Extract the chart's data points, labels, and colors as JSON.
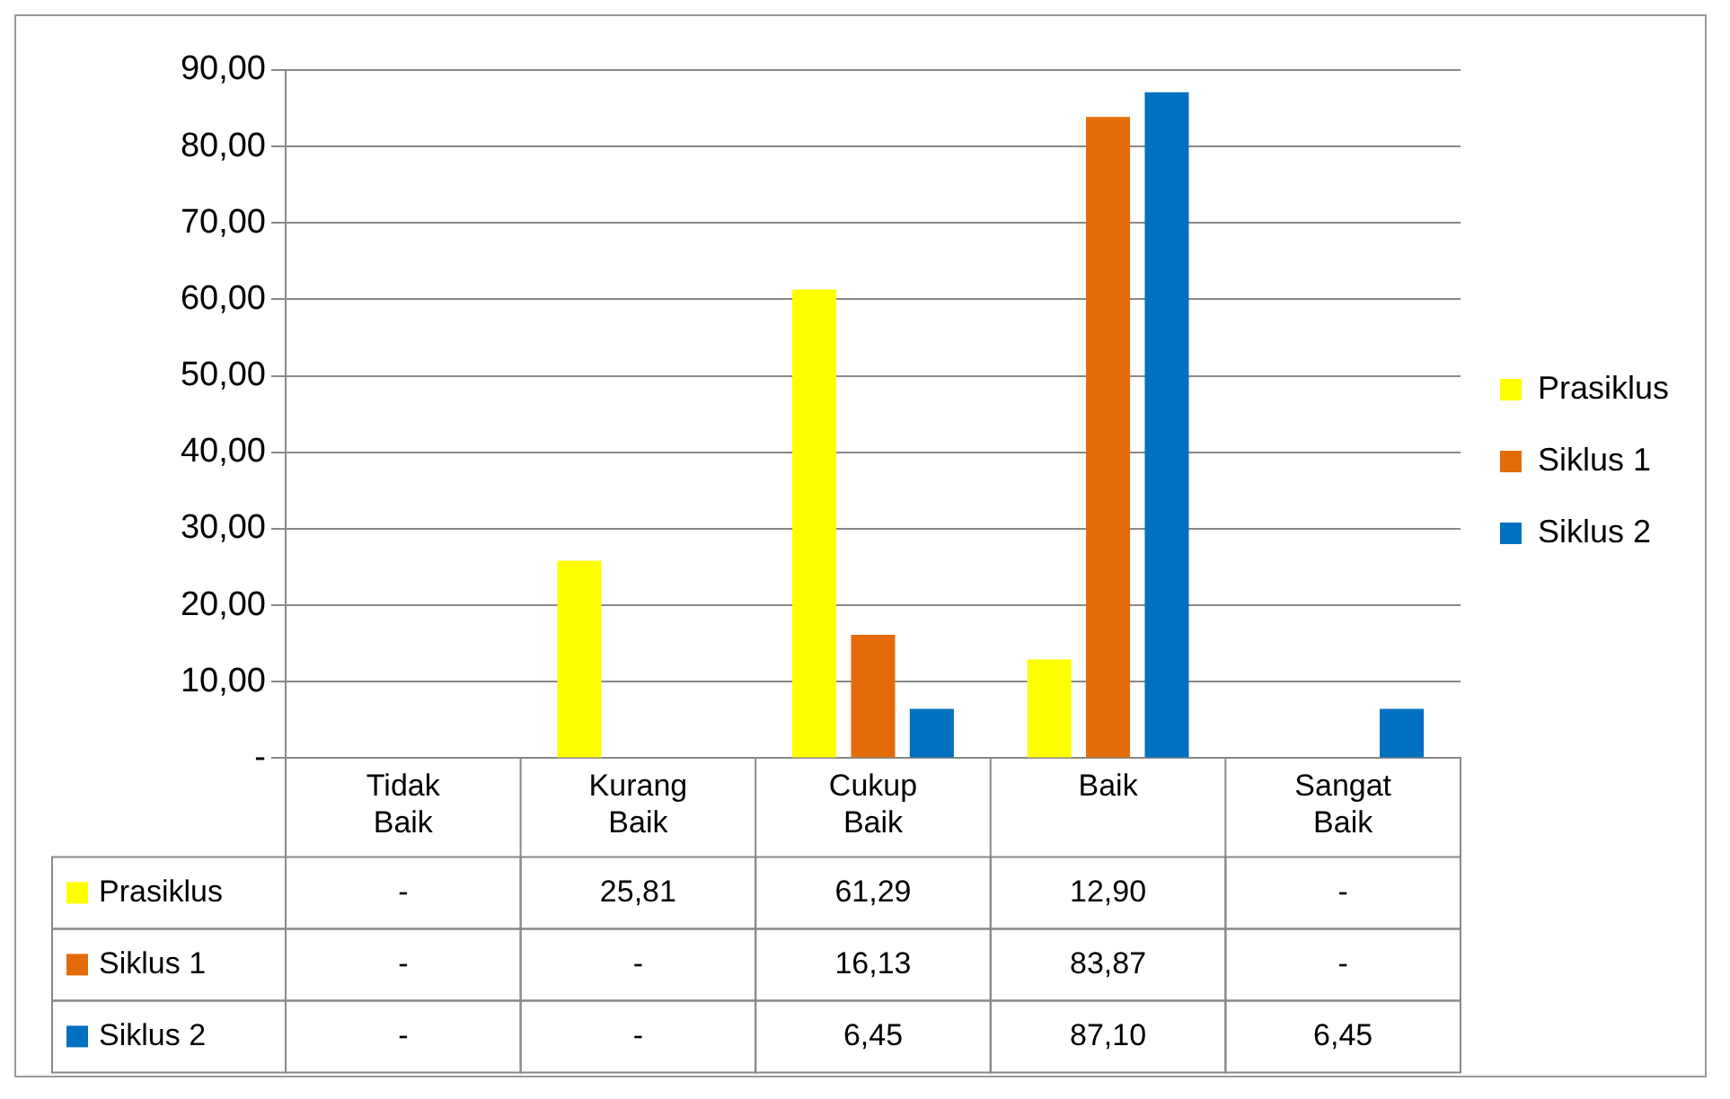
{
  "chart_data": {
    "type": "bar",
    "categories": [
      "Tidak Baik",
      "Kurang Baik",
      "Cukup Baik",
      "Baik",
      "Sangat Baik"
    ],
    "series": [
      {
        "name": "Prasiklus",
        "color": "#ffff00",
        "values": [
          0,
          25.81,
          61.29,
          12.9,
          0
        ],
        "value_labels": [
          "-",
          "25,81",
          "61,29",
          "12,90",
          "-"
        ]
      },
      {
        "name": "Siklus 1",
        "color": "#e36c09",
        "values": [
          0,
          0,
          16.13,
          83.87,
          0
        ],
        "value_labels": [
          "-",
          "-",
          "16,13",
          "83,87",
          "-"
        ]
      },
      {
        "name": "Siklus 2",
        "color": "#0070c0",
        "values": [
          0,
          0,
          6.45,
          87.1,
          6.45
        ],
        "value_labels": [
          "-",
          "-",
          "6,45",
          "87,10",
          "6,45"
        ]
      }
    ],
    "ylim": [
      0,
      90
    ],
    "yticks": [
      {
        "value": 0,
        "label": "-"
      },
      {
        "value": 10,
        "label": "10,00"
      },
      {
        "value": 20,
        "label": "20,00"
      },
      {
        "value": 30,
        "label": "30,00"
      },
      {
        "value": 40,
        "label": "40,00"
      },
      {
        "value": 50,
        "label": "50,00"
      },
      {
        "value": 60,
        "label": "60,00"
      },
      {
        "value": 70,
        "label": "70,00"
      },
      {
        "value": 80,
        "label": "80,00"
      },
      {
        "value": 90,
        "label": "90,00"
      }
    ],
    "grid": "y",
    "legend": "right"
  }
}
